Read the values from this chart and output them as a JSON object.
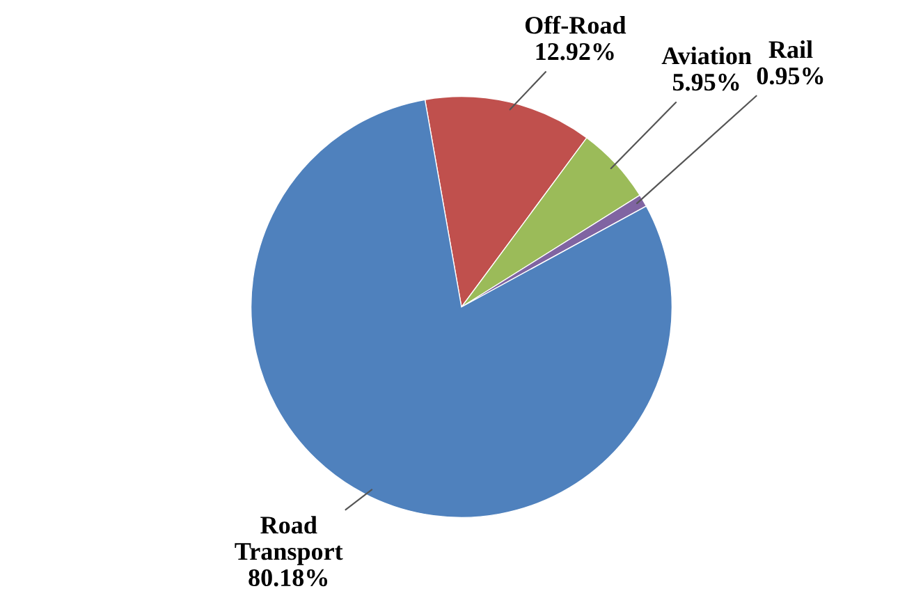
{
  "chart_data": {
    "type": "pie",
    "categories": [
      "Off-Road",
      "Aviation",
      "Rail",
      "Road Transport"
    ],
    "values": [
      12.92,
      5.95,
      0.95,
      80.18
    ],
    "value_labels": [
      "12.92%",
      "5.95%",
      "0.95%",
      "80.18%"
    ],
    "colors": [
      "#c0504d",
      "#9bbb59",
      "#8064a2",
      "#4f81bd"
    ],
    "legend": false
  }
}
